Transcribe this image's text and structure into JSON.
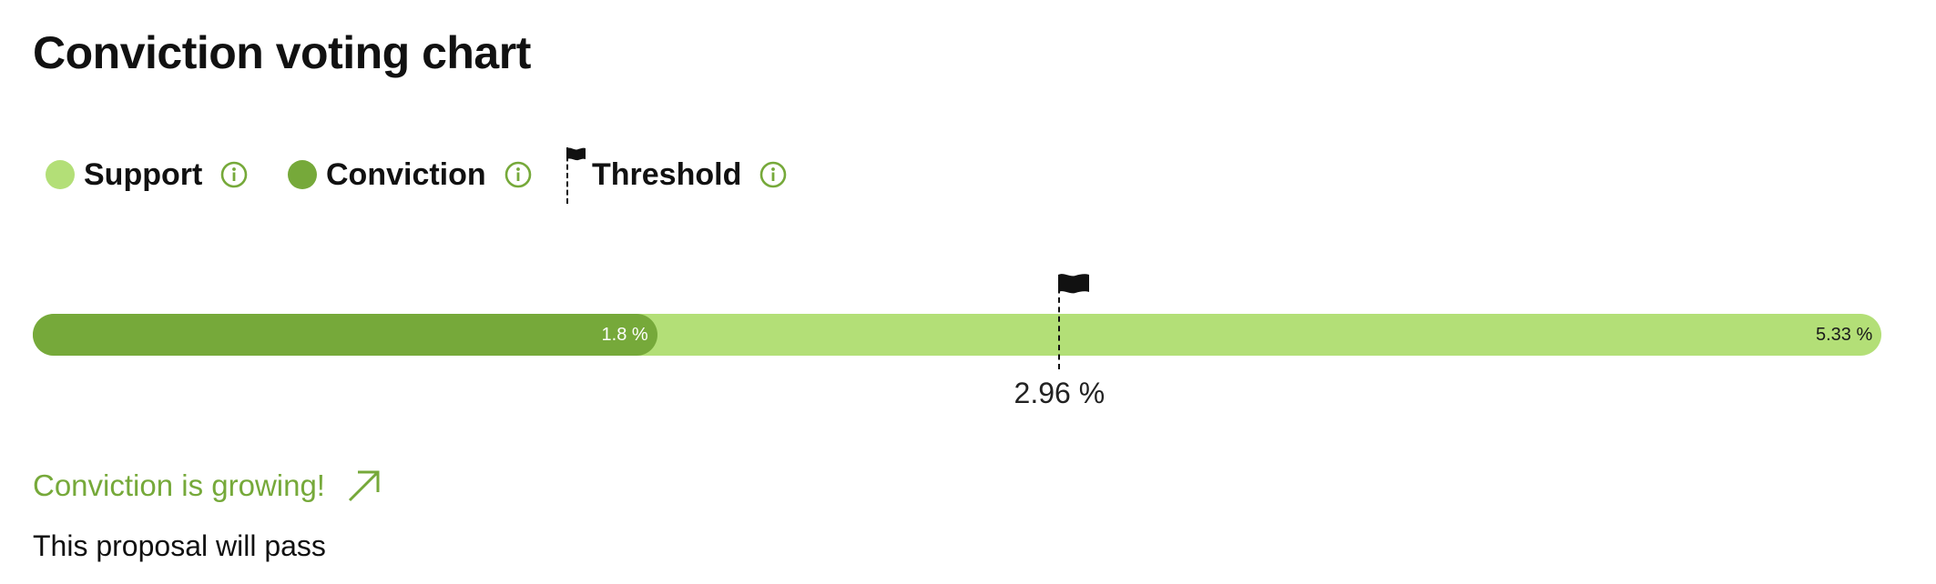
{
  "title": "Conviction voting chart",
  "legend": {
    "support_label": "Support",
    "conviction_label": "Conviction",
    "threshold_label": "Threshold",
    "info_icon": "info-circle-icon",
    "flag_icon": "flag-icon"
  },
  "colors": {
    "support": "#b3df77",
    "conviction": "#76a93a",
    "accent": "#76a93a",
    "threshold": "#111111"
  },
  "chart_data": {
    "type": "bar",
    "orientation": "horizontal",
    "scale_max_percent": 5.33,
    "support_percent": 5.33,
    "conviction_percent": 1.8,
    "threshold_percent": 2.96,
    "support_label": "5.33 %",
    "conviction_label": "1.8 %",
    "threshold_label": "2.96 %"
  },
  "status": {
    "trend_text": "Conviction is growing!",
    "trend_icon": "arrow-up-right-icon",
    "outcome_text": "This proposal will pass"
  }
}
